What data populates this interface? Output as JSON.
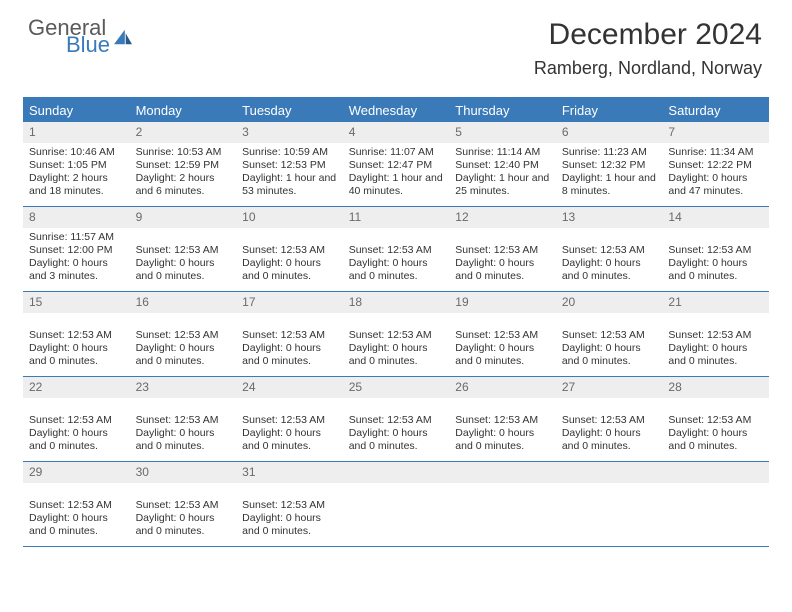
{
  "logo": {
    "text1": "General",
    "text2": "Blue"
  },
  "header": {
    "month": "December 2024",
    "location": "Ramberg, Nordland, Norway"
  },
  "colors": {
    "brand": "#3a7ab8",
    "band": "#eeeeee",
    "text": "#333333"
  },
  "dayNames": [
    "Sunday",
    "Monday",
    "Tuesday",
    "Wednesday",
    "Thursday",
    "Friday",
    "Saturday"
  ],
  "weeks": [
    [
      {
        "n": "1",
        "lines": [
          "Sunrise: 10:46 AM",
          "Sunset: 1:05 PM",
          "Daylight: 2 hours and 18 minutes."
        ]
      },
      {
        "n": "2",
        "lines": [
          "Sunrise: 10:53 AM",
          "Sunset: 12:59 PM",
          "Daylight: 2 hours and 6 minutes."
        ]
      },
      {
        "n": "3",
        "lines": [
          "Sunrise: 10:59 AM",
          "Sunset: 12:53 PM",
          "Daylight: 1 hour and 53 minutes."
        ]
      },
      {
        "n": "4",
        "lines": [
          "Sunrise: 11:07 AM",
          "Sunset: 12:47 PM",
          "Daylight: 1 hour and 40 minutes."
        ]
      },
      {
        "n": "5",
        "lines": [
          "Sunrise: 11:14 AM",
          "Sunset: 12:40 PM",
          "Daylight: 1 hour and 25 minutes."
        ]
      },
      {
        "n": "6",
        "lines": [
          "Sunrise: 11:23 AM",
          "Sunset: 12:32 PM",
          "Daylight: 1 hour and 8 minutes."
        ]
      },
      {
        "n": "7",
        "lines": [
          "Sunrise: 11:34 AM",
          "Sunset: 12:22 PM",
          "Daylight: 0 hours and 47 minutes."
        ]
      }
    ],
    [
      {
        "n": "8",
        "lines": [
          "Sunrise: 11:57 AM",
          "Sunset: 12:00 PM",
          "Daylight: 0 hours and 3 minutes."
        ]
      },
      {
        "n": "9",
        "lines": [
          "",
          "Sunset: 12:53 AM",
          "Daylight: 0 hours and 0 minutes."
        ]
      },
      {
        "n": "10",
        "lines": [
          "",
          "Sunset: 12:53 AM",
          "Daylight: 0 hours and 0 minutes."
        ]
      },
      {
        "n": "11",
        "lines": [
          "",
          "Sunset: 12:53 AM",
          "Daylight: 0 hours and 0 minutes."
        ]
      },
      {
        "n": "12",
        "lines": [
          "",
          "Sunset: 12:53 AM",
          "Daylight: 0 hours and 0 minutes."
        ]
      },
      {
        "n": "13",
        "lines": [
          "",
          "Sunset: 12:53 AM",
          "Daylight: 0 hours and 0 minutes."
        ]
      },
      {
        "n": "14",
        "lines": [
          "",
          "Sunset: 12:53 AM",
          "Daylight: 0 hours and 0 minutes."
        ]
      }
    ],
    [
      {
        "n": "15",
        "lines": [
          "",
          "Sunset: 12:53 AM",
          "Daylight: 0 hours and 0 minutes."
        ]
      },
      {
        "n": "16",
        "lines": [
          "",
          "Sunset: 12:53 AM",
          "Daylight: 0 hours and 0 minutes."
        ]
      },
      {
        "n": "17",
        "lines": [
          "",
          "Sunset: 12:53 AM",
          "Daylight: 0 hours and 0 minutes."
        ]
      },
      {
        "n": "18",
        "lines": [
          "",
          "Sunset: 12:53 AM",
          "Daylight: 0 hours and 0 minutes."
        ]
      },
      {
        "n": "19",
        "lines": [
          "",
          "Sunset: 12:53 AM",
          "Daylight: 0 hours and 0 minutes."
        ]
      },
      {
        "n": "20",
        "lines": [
          "",
          "Sunset: 12:53 AM",
          "Daylight: 0 hours and 0 minutes."
        ]
      },
      {
        "n": "21",
        "lines": [
          "",
          "Sunset: 12:53 AM",
          "Daylight: 0 hours and 0 minutes."
        ]
      }
    ],
    [
      {
        "n": "22",
        "lines": [
          "",
          "Sunset: 12:53 AM",
          "Daylight: 0 hours and 0 minutes."
        ]
      },
      {
        "n": "23",
        "lines": [
          "",
          "Sunset: 12:53 AM",
          "Daylight: 0 hours and 0 minutes."
        ]
      },
      {
        "n": "24",
        "lines": [
          "",
          "Sunset: 12:53 AM",
          "Daylight: 0 hours and 0 minutes."
        ]
      },
      {
        "n": "25",
        "lines": [
          "",
          "Sunset: 12:53 AM",
          "Daylight: 0 hours and 0 minutes."
        ]
      },
      {
        "n": "26",
        "lines": [
          "",
          "Sunset: 12:53 AM",
          "Daylight: 0 hours and 0 minutes."
        ]
      },
      {
        "n": "27",
        "lines": [
          "",
          "Sunset: 12:53 AM",
          "Daylight: 0 hours and 0 minutes."
        ]
      },
      {
        "n": "28",
        "lines": [
          "",
          "Sunset: 12:53 AM",
          "Daylight: 0 hours and 0 minutes."
        ]
      }
    ],
    [
      {
        "n": "29",
        "lines": [
          "",
          "Sunset: 12:53 AM",
          "Daylight: 0 hours and 0 minutes."
        ]
      },
      {
        "n": "30",
        "lines": [
          "",
          "Sunset: 12:53 AM",
          "Daylight: 0 hours and 0 minutes."
        ]
      },
      {
        "n": "31",
        "lines": [
          "",
          "Sunset: 12:53 AM",
          "Daylight: 0 hours and 0 minutes."
        ]
      },
      {
        "n": "",
        "lines": []
      },
      {
        "n": "",
        "lines": []
      },
      {
        "n": "",
        "lines": []
      },
      {
        "n": "",
        "lines": []
      }
    ]
  ]
}
